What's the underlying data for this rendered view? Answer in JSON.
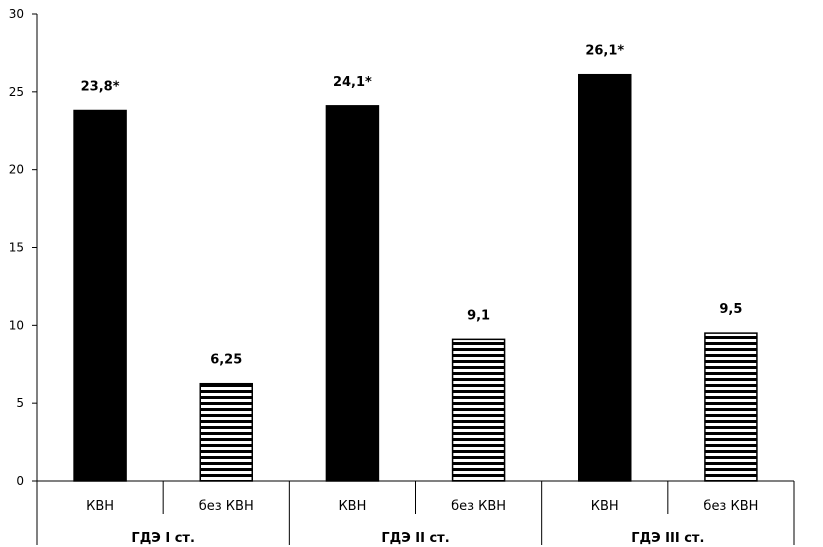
{
  "chart_data": {
    "type": "bar",
    "ylim": [
      0,
      30
    ],
    "yticks": [
      "0",
      "5",
      "10",
      "15",
      "20",
      "25",
      "30"
    ],
    "groups": [
      {
        "label": "ГДЭ I ст.",
        "bars": [
          {
            "category": "КВН",
            "value": 23.8,
            "label": "23,8*",
            "pattern": "solid"
          },
          {
            "category": "без КВН",
            "value": 6.25,
            "label": "6,25",
            "pattern": "striped"
          }
        ]
      },
      {
        "label": "ГДЭ II ст.",
        "bars": [
          {
            "category": "КВН",
            "value": 24.1,
            "label": "24,1*",
            "pattern": "solid"
          },
          {
            "category": "без КВН",
            "value": 9.1,
            "label": "9,1",
            "pattern": "striped"
          }
        ]
      },
      {
        "label": "ГДЭ III ст.",
        "bars": [
          {
            "category": "КВН",
            "value": 26.1,
            "label": "26,1*",
            "pattern": "solid"
          },
          {
            "category": "без КВН",
            "value": 9.5,
            "label": "9,5",
            "pattern": "striped"
          }
        ]
      }
    ],
    "colors": {
      "solid": "#000000",
      "stripe": "#000000",
      "background": "#ffffff"
    },
    "grid": false,
    "legend": "none"
  }
}
